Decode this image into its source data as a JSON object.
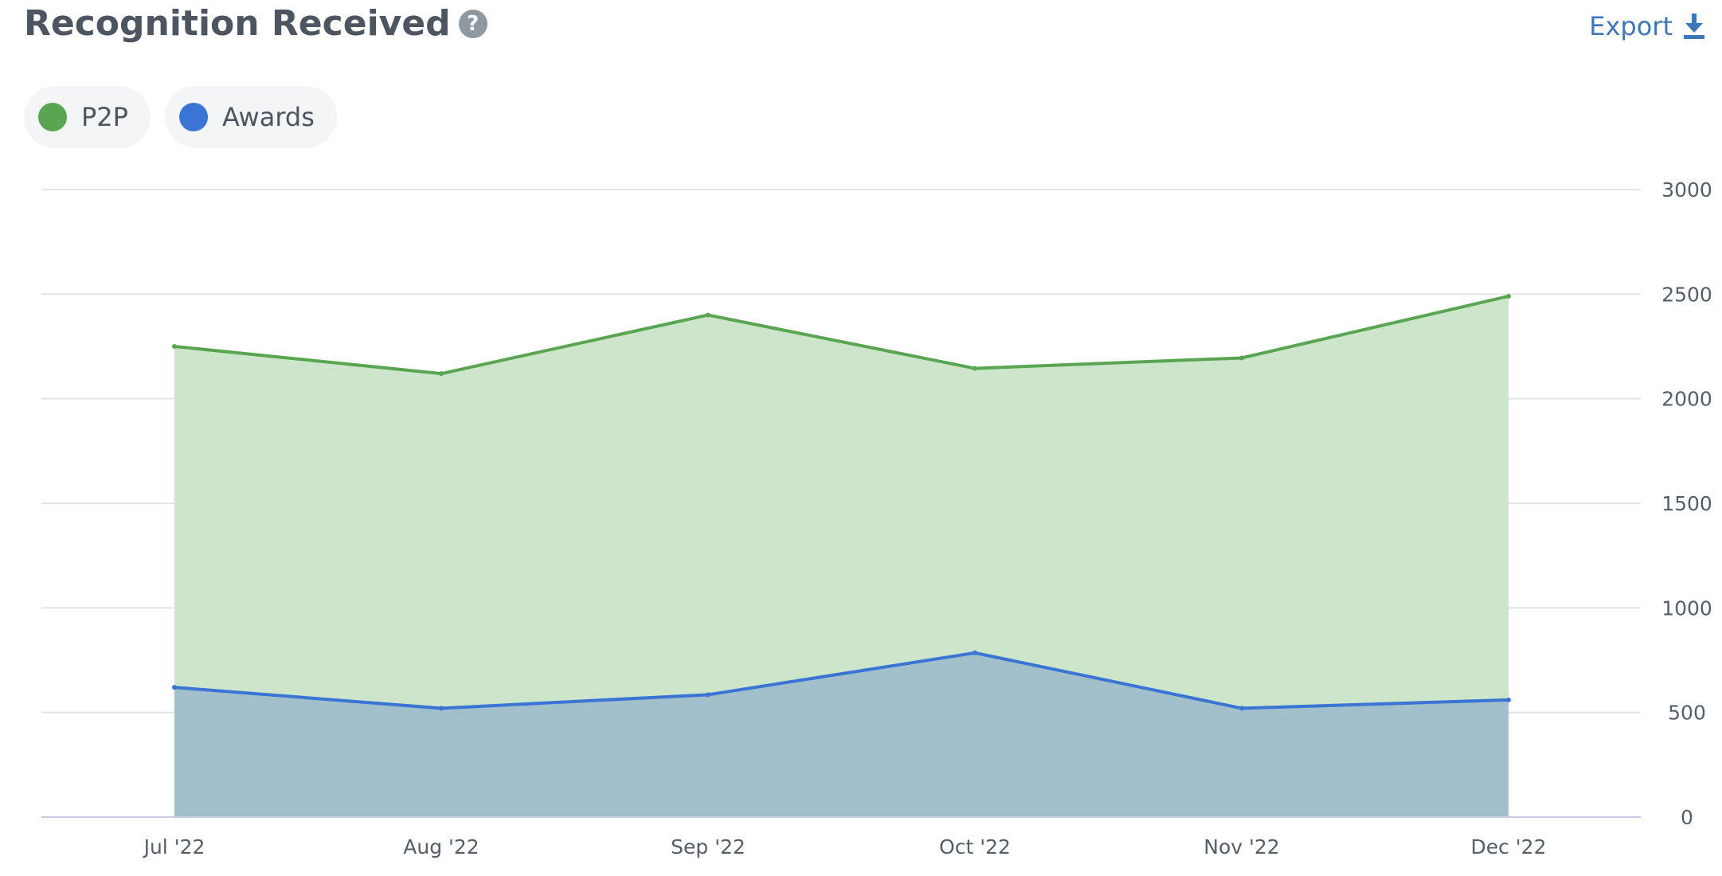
{
  "header": {
    "title": "Recognition Received",
    "help_icon": "question-circle-icon",
    "help_glyph": "?",
    "export_label": "Export",
    "export_icon": "download-icon"
  },
  "colors": {
    "p2p_line": "#5aa552",
    "p2p_fill": "#cde5cb",
    "awards_line": "#3a74d4",
    "awards_fill": "#a1c0cb",
    "grid": "#e2e4e6",
    "axis": "#c6cbe0"
  },
  "legend": [
    {
      "label": "P2P",
      "color": "#5aa552"
    },
    {
      "label": "Awards",
      "color": "#3a74d4"
    }
  ],
  "chart_data": {
    "type": "area",
    "title": "Recognition Received",
    "categories": [
      "Jul '22",
      "Aug '22",
      "Sep '22",
      "Oct '22",
      "Nov '22",
      "Dec '22"
    ],
    "series": [
      {
        "name": "P2P",
        "values": [
          2250,
          2120,
          2400,
          2145,
          2195,
          2490
        ]
      },
      {
        "name": "Awards",
        "values": [
          620,
          520,
          585,
          785,
          520,
          560
        ]
      }
    ],
    "ylim": [
      0,
      3000
    ],
    "yticks": [
      0,
      500,
      1000,
      1500,
      2000,
      2500,
      3000
    ],
    "y_axis_position": "right",
    "grid": true,
    "legend_position": "top-left"
  }
}
